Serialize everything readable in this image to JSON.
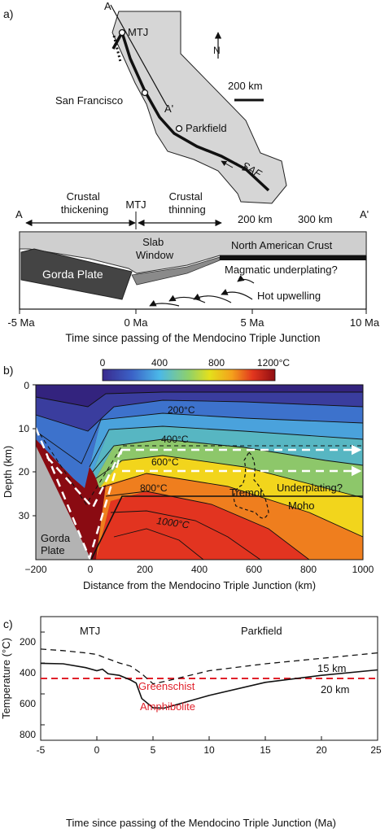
{
  "panel_a": {
    "label": "a)",
    "map": {
      "north": "N",
      "scale": "200 km",
      "endpoint_a": "A",
      "endpoint_a_prime": "A'",
      "mtj": "MTJ",
      "san_francisco": "San Francisco",
      "parkfield": "Parkfield",
      "saf": "SAF"
    },
    "cross_section": {
      "left_end": "A",
      "right_end": "A'",
      "crustal_thickening": [
        "Crustal",
        "thickening"
      ],
      "mtj": "MTJ",
      "crustal_thinning": [
        "Crustal",
        "thinning"
      ],
      "dist_200": "200 km",
      "dist_300": "300 km",
      "slab_window": [
        "Slab",
        "Window"
      ],
      "north_american_crust": "North American Crust",
      "gorda_plate": "Gorda Plate",
      "magmatic_underplating": "Magmatic underplating?",
      "hot_upwelling": "Hot upwelling",
      "time_ticks": [
        "-5 Ma",
        "0 Ma",
        "5 Ma",
        "10 Ma"
      ],
      "time_axis_label": "Time since passing of the Mendocino Triple Junction"
    }
  },
  "panel_b": {
    "label": "b)",
    "colorbar_ticks": [
      "0",
      "400",
      "800",
      "1200°C"
    ],
    "isotherm_labels": [
      "200°C",
      "400°C",
      "600°C",
      "800°C",
      "1000°C"
    ],
    "tremor": "Tremor",
    "underplating": "Underplating?",
    "moho": "Moho",
    "gorda_plate": [
      "Gorda",
      "Plate"
    ],
    "ylabel": "Depth (km)",
    "xlabel": "Distance from the Mendocino Triple Junction (km)",
    "y_ticks": [
      "0",
      "10",
      "20",
      "30"
    ],
    "x_ticks": [
      "−200",
      "0",
      "200",
      "400",
      "600",
      "800",
      "1000"
    ]
  },
  "panel_c": {
    "label": "c)",
    "mtj": "MTJ",
    "parkfield": "Parkfield",
    "greenschist": "Greenschist",
    "amphibolite": "Amphibolite",
    "line_15": "15 km",
    "line_20": "20 km",
    "ylabel": "Temperature (°C)",
    "xlabel": "Time since passing of the Mendocino Triple Junction (Ma)",
    "y_ticks": [
      "200",
      "400",
      "600",
      "800"
    ],
    "x_ticks": [
      "-5",
      "0",
      "5",
      "10",
      "15",
      "20",
      "25"
    ],
    "colors": {
      "facies_line": "#e0202a",
      "facies_text": "#e0202a"
    }
  },
  "chart_data": {
    "type": "line",
    "x_range": [
      -5,
      25
    ],
    "y_range": [
      900,
      100
    ],
    "y_inverted": true,
    "facies_boundary_temperature": 500,
    "series": [
      {
        "name": "15 km",
        "style": "dashed",
        "x": [
          -5,
          -3,
          -1,
          0,
          0.5,
          2,
          3,
          4,
          5,
          6,
          10,
          15,
          20,
          25
        ],
        "y": [
          310,
          320,
          335,
          345,
          360,
          400,
          420,
          470,
          535,
          520,
          450,
          405,
          370,
          335
        ]
      },
      {
        "name": "20 km",
        "style": "solid",
        "x": [
          -5,
          -3,
          -1,
          0,
          0.5,
          1,
          2,
          3,
          3.5,
          4,
          5,
          6,
          10,
          15,
          20,
          25
        ],
        "y": [
          402,
          405,
          430,
          450,
          440,
          470,
          480,
          510,
          530,
          630,
          690,
          692,
          610,
          525,
          480,
          445
        ]
      }
    ]
  }
}
